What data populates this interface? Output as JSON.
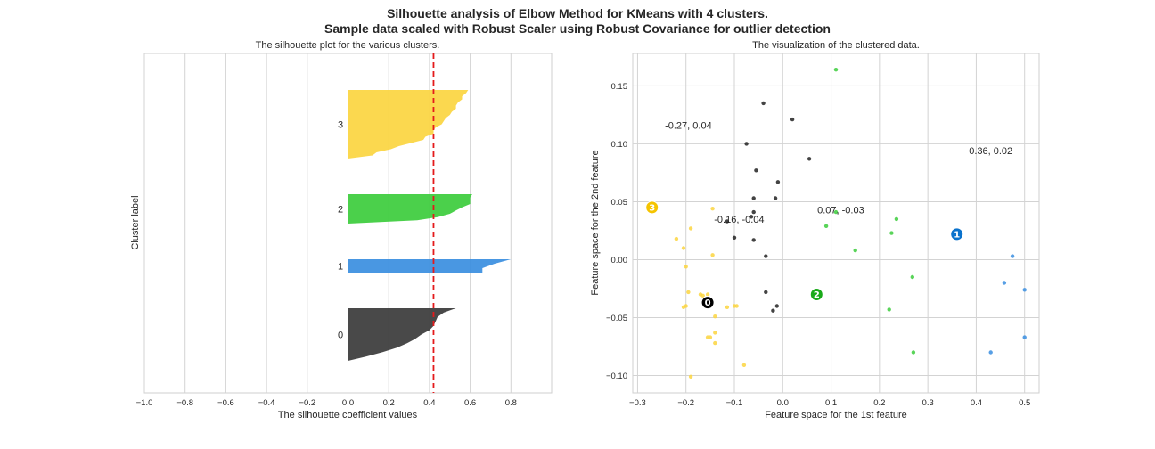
{
  "figure": {
    "title_line1": "Silhouette analysis of Elbow Method for KMeans with 4 clusters.",
    "title_line2": "Sample data scaled with Robust Scaler using Robust Covariance for outlier detection"
  },
  "chart_data": [
    {
      "type": "area",
      "title": "The silhouette plot for the various clusters.",
      "xlabel": "The silhouette coefficient values",
      "ylabel": "Cluster label",
      "xlim": [
        -1.0,
        1.0
      ],
      "xticks": [
        "−1.0",
        "−0.8",
        "−0.6",
        "−0.4",
        "−0.2",
        "0.0",
        "0.2",
        "0.4",
        "0.6",
        "0.8"
      ],
      "xtick_values": [
        -1.0,
        -0.8,
        -0.6,
        -0.4,
        -0.2,
        0.0,
        0.2,
        0.4,
        0.6,
        0.8
      ],
      "grid": "vertical",
      "average_silhouette": 0.42,
      "average_line_color": "#e41a1c",
      "clusters": [
        {
          "label": "0",
          "color": "#3a3a3a",
          "profile": [
            0.53,
            0.47,
            0.44,
            0.43,
            0.42,
            0.4,
            0.36,
            0.33,
            0.29,
            0.24,
            0.17,
            0.09,
            0.0
          ]
        },
        {
          "label": "1",
          "color": "#3a8ee0",
          "profile": [
            0.8,
            0.72,
            0.66,
            0.66
          ]
        },
        {
          "label": "2",
          "color": "#3ccc3c",
          "profile": [
            0.61,
            0.6,
            0.6,
            0.6,
            0.56,
            0.53,
            0.5,
            0.44,
            0.34,
            0.0
          ]
        },
        {
          "label": "3",
          "color": "#fbd540",
          "profile": [
            0.59,
            0.58,
            0.56,
            0.56,
            0.54,
            0.53,
            0.53,
            0.51,
            0.5,
            0.48,
            0.47,
            0.46,
            0.43,
            0.42,
            0.42,
            0.38,
            0.37,
            0.31,
            0.25,
            0.21,
            0.14,
            0.12,
            0.0
          ]
        }
      ]
    },
    {
      "type": "scatter",
      "title": "The visualization of the clustered data.",
      "xlabel": "Feature space for the 1st feature",
      "ylabel": "Feature space for the 2nd feature",
      "xlim": [
        -0.31,
        0.53
      ],
      "ylim": [
        -0.115,
        0.178
      ],
      "xticks": [
        "−0.3",
        "−0.2",
        "−0.1",
        "0.0",
        "0.1",
        "0.2",
        "0.3",
        "0.4",
        "0.5"
      ],
      "xtick_values": [
        -0.3,
        -0.2,
        -0.1,
        0.0,
        0.1,
        0.2,
        0.3,
        0.4,
        0.5
      ],
      "yticks": [
        "−0.10",
        "−0.05",
        "0.00",
        "0.05",
        "0.10",
        "0.15"
      ],
      "ytick_values": [
        -0.1,
        -0.05,
        0.0,
        0.05,
        0.1,
        0.15
      ],
      "grid": "both",
      "series": [
        {
          "cluster": "0",
          "color": "#222222",
          "points": [
            [
              -0.04,
              0.135
            ],
            [
              0.02,
              0.121
            ],
            [
              -0.075,
              0.1
            ],
            [
              0.055,
              0.087
            ],
            [
              -0.055,
              0.077
            ],
            [
              -0.01,
              0.067
            ],
            [
              -0.06,
              0.053
            ],
            [
              -0.015,
              0.053
            ],
            [
              -0.06,
              0.041
            ],
            [
              -0.115,
              0.033
            ],
            [
              -0.1,
              0.019
            ],
            [
              -0.06,
              0.017
            ],
            [
              -0.035,
              0.003
            ],
            [
              -0.035,
              -0.028
            ],
            [
              -0.02,
              -0.044
            ],
            [
              -0.012,
              -0.04
            ],
            [
              -0.065,
              0.037
            ]
          ]
        },
        {
          "cluster": "1",
          "color": "#3a8ee0",
          "points": [
            [
              0.475,
              0.003
            ],
            [
              0.458,
              -0.02
            ],
            [
              0.5,
              -0.026
            ],
            [
              0.5,
              -0.067
            ],
            [
              0.43,
              -0.08
            ]
          ]
        },
        {
          "cluster": "2",
          "color": "#3ccc3c",
          "points": [
            [
              0.11,
              0.164
            ],
            [
              0.11,
              0.041
            ],
            [
              0.09,
              0.029
            ],
            [
              0.235,
              0.035
            ],
            [
              0.225,
              0.023
            ],
            [
              0.15,
              0.008
            ],
            [
              0.268,
              -0.015
            ],
            [
              0.22,
              -0.043
            ],
            [
              0.27,
              -0.08
            ]
          ]
        },
        {
          "cluster": "3",
          "color": "#fbd540",
          "points": [
            [
              -0.145,
              0.044
            ],
            [
              -0.22,
              0.018
            ],
            [
              -0.19,
              0.027
            ],
            [
              -0.205,
              0.01
            ],
            [
              -0.2,
              -0.006
            ],
            [
              -0.145,
              0.004
            ],
            [
              -0.195,
              -0.028
            ],
            [
              -0.17,
              -0.03
            ],
            [
              -0.165,
              -0.031
            ],
            [
              -0.155,
              -0.03
            ],
            [
              -0.2,
              -0.04
            ],
            [
              -0.205,
              -0.041
            ],
            [
              -0.14,
              -0.049
            ],
            [
              -0.1,
              -0.04
            ],
            [
              -0.095,
              -0.04
            ],
            [
              -0.115,
              -0.041
            ],
            [
              -0.14,
              -0.063
            ],
            [
              -0.155,
              -0.067
            ],
            [
              -0.15,
              -0.067
            ],
            [
              -0.14,
              -0.072
            ],
            [
              -0.08,
              -0.091
            ],
            [
              -0.19,
              -0.101
            ]
          ]
        }
      ],
      "centers": [
        {
          "label": "0",
          "x": -0.155,
          "y": -0.037,
          "color": "#000000"
        },
        {
          "label": "1",
          "x": 0.36,
          "y": 0.022,
          "color": "#0a72cc"
        },
        {
          "label": "2",
          "x": 0.07,
          "y": -0.03,
          "color": "#1aaa1a"
        },
        {
          "label": "3",
          "x": -0.27,
          "y": 0.045,
          "color": "#f5c400"
        }
      ],
      "annotations": [
        {
          "text": "-0.27, 0.04",
          "x": -0.195,
          "y": 0.116
        },
        {
          "text": "0.36, 0.02",
          "x": 0.43,
          "y": 0.094
        },
        {
          "text": "0.07, -0.03",
          "x": 0.12,
          "y": 0.043
        },
        {
          "text": "-0.16, -0.04",
          "x": -0.09,
          "y": 0.035
        }
      ]
    }
  ]
}
